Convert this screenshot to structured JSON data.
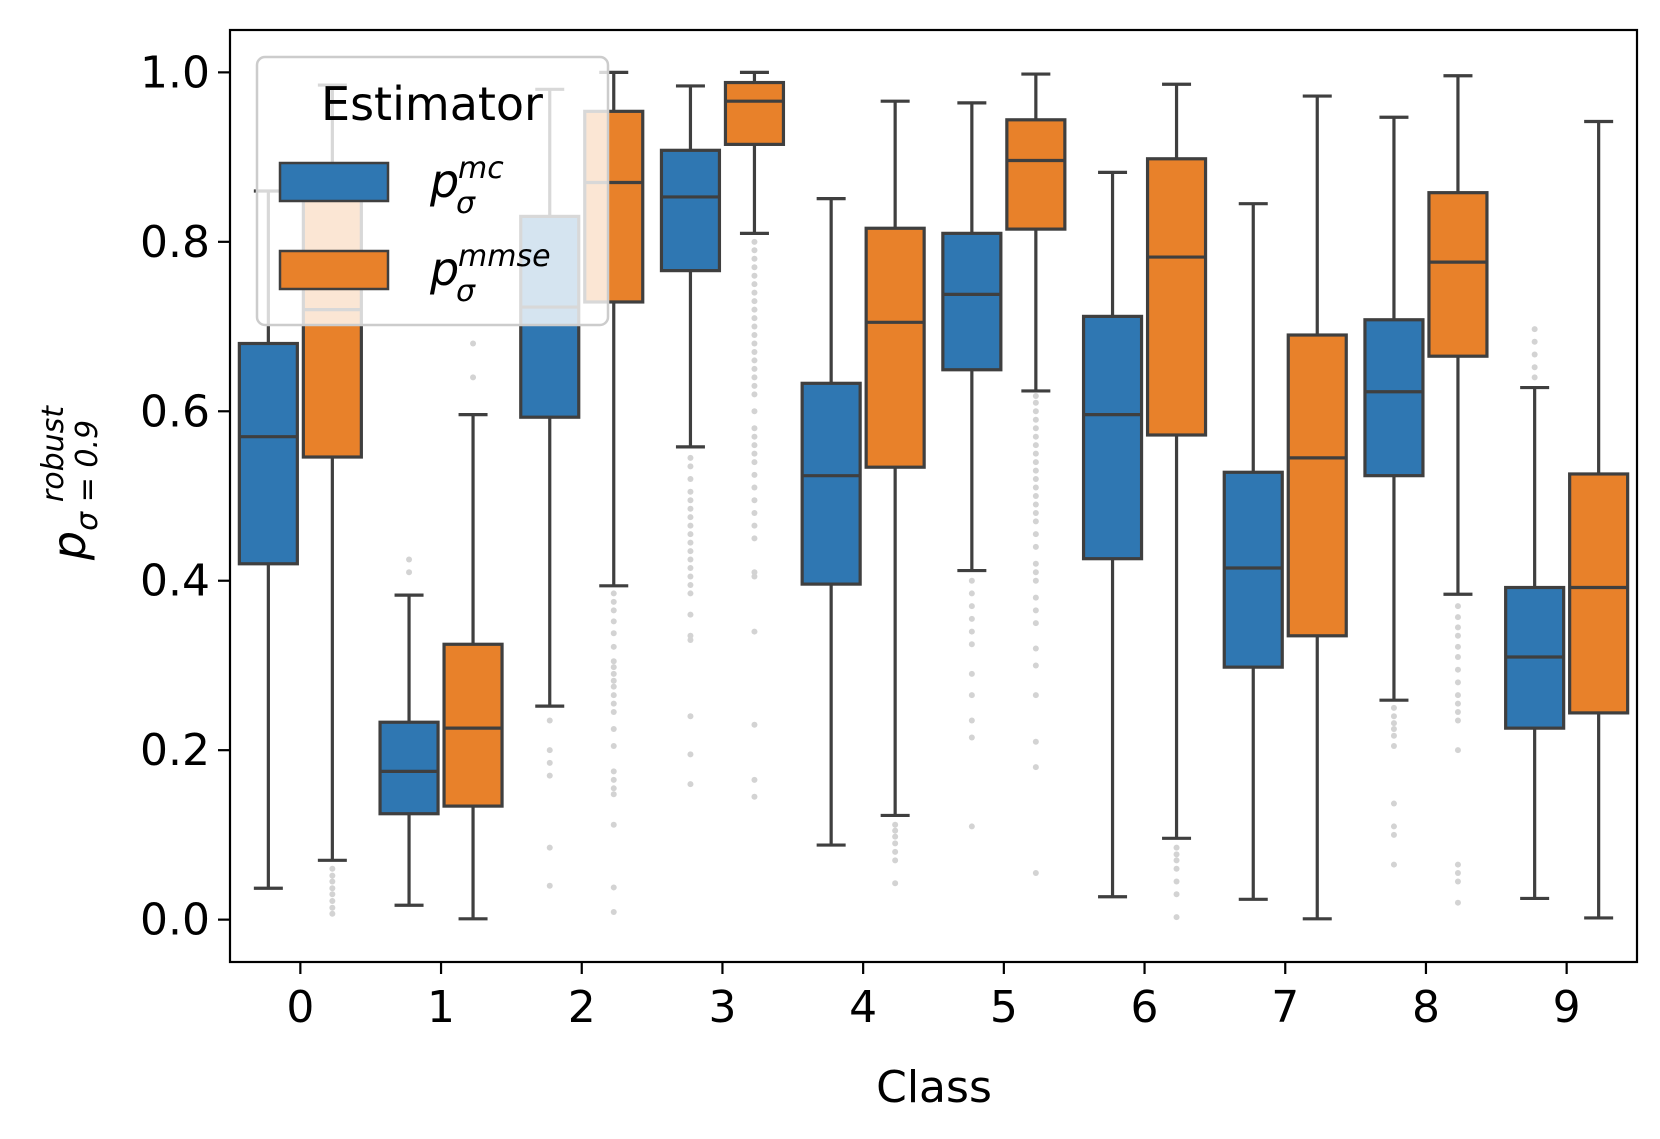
{
  "chart_data": {
    "type": "boxplot",
    "xlabel": "Class",
    "ylabel": {
      "base": "p",
      "sup": "robust",
      "sub": "σ = 0.9"
    },
    "categories": [
      "0",
      "1",
      "2",
      "3",
      "4",
      "5",
      "6",
      "7",
      "8",
      "9"
    ],
    "ylim": [
      -0.05,
      1.05
    ],
    "yticks": [
      "0.0",
      "0.2",
      "0.4",
      "0.6",
      "0.8",
      "1.0"
    ],
    "legend": {
      "title": "Estimator",
      "position": "top-left",
      "entries": [
        {
          "base": "p",
          "sub": "σ",
          "sup": "mc"
        },
        {
          "base": "p",
          "sub": "σ",
          "sup": "mmse"
        }
      ]
    },
    "colors": {
      "mc": "#2f77b2",
      "mmse": "#e8812a",
      "edge": "#3f3f3f",
      "flier": "#d3d3d3"
    },
    "series": [
      {
        "name": "mc",
        "boxes": [
          {
            "whislo": 0.037,
            "q1": 0.42,
            "med": 0.57,
            "q3": 0.68,
            "whishi": 0.86,
            "fliers": []
          },
          {
            "whislo": 0.017,
            "q1": 0.125,
            "med": 0.175,
            "q3": 0.233,
            "whishi": 0.383,
            "fliers": [
              0.41,
              0.425
            ]
          },
          {
            "whislo": 0.252,
            "q1": 0.593,
            "med": 0.723,
            "q3": 0.83,
            "whishi": 0.98,
            "fliers": [
              0.235,
              0.2,
              0.185,
              0.17,
              0.085,
              0.04
            ]
          },
          {
            "whislo": 0.558,
            "q1": 0.766,
            "med": 0.853,
            "q3": 0.908,
            "whishi": 0.984,
            "fliers": [
              0.545,
              0.535,
              0.52,
              0.505,
              0.495,
              0.485,
              0.475,
              0.465,
              0.455,
              0.445,
              0.435,
              0.425,
              0.415,
              0.405,
              0.395,
              0.385,
              0.36,
              0.335,
              0.33,
              0.24,
              0.195,
              0.16
            ]
          },
          {
            "whislo": 0.088,
            "q1": 0.396,
            "med": 0.524,
            "q3": 0.633,
            "whishi": 0.851,
            "fliers": []
          },
          {
            "whislo": 0.412,
            "q1": 0.649,
            "med": 0.738,
            "q3": 0.81,
            "whishi": 0.964,
            "fliers": [
              0.4,
              0.385,
              0.37,
              0.355,
              0.34,
              0.325,
              0.29,
              0.265,
              0.235,
              0.215,
              0.11
            ]
          },
          {
            "whislo": 0.027,
            "q1": 0.426,
            "med": 0.596,
            "q3": 0.712,
            "whishi": 0.882,
            "fliers": []
          },
          {
            "whislo": 0.024,
            "q1": 0.298,
            "med": 0.415,
            "q3": 0.528,
            "whishi": 0.845,
            "fliers": []
          },
          {
            "whislo": 0.259,
            "q1": 0.524,
            "med": 0.623,
            "q3": 0.708,
            "whishi": 0.947,
            "fliers": [
              0.25,
              0.24,
              0.232,
              0.225,
              0.217,
              0.205,
              0.137,
              0.11,
              0.1,
              0.065
            ]
          },
          {
            "whislo": 0.025,
            "q1": 0.226,
            "med": 0.31,
            "q3": 0.392,
            "whishi": 0.628,
            "fliers": [
              0.697,
              0.682,
              0.667,
              0.652,
              0.64
            ]
          }
        ]
      },
      {
        "name": "mmse",
        "boxes": [
          {
            "whislo": 0.07,
            "q1": 0.546,
            "med": 0.72,
            "q3": 0.86,
            "whishi": 0.985,
            "fliers": [
              0.06,
              0.052,
              0.045,
              0.037,
              0.03,
              0.022,
              0.014,
              0.007
            ]
          },
          {
            "whislo": 0.001,
            "q1": 0.134,
            "med": 0.226,
            "q3": 0.325,
            "whishi": 0.596,
            "fliers": [
              0.68,
              0.64
            ]
          },
          {
            "whislo": 0.394,
            "q1": 0.729,
            "med": 0.87,
            "q3": 0.954,
            "whishi": 1.0,
            "fliers": [
              0.385,
              0.375,
              0.365,
              0.352,
              0.338,
              0.322,
              0.305,
              0.298,
              0.29,
              0.282,
              0.275,
              0.265,
              0.255,
              0.245,
              0.225,
              0.205,
              0.175,
              0.165,
              0.155,
              0.148,
              0.112,
              0.038,
              0.009
            ]
          },
          {
            "whislo": 0.81,
            "q1": 0.915,
            "med": 0.966,
            "q3": 0.988,
            "whishi": 1.0,
            "fliers": [
              0.8,
              0.79,
              0.78,
              0.77,
              0.76,
              0.75,
              0.74,
              0.73,
              0.72,
              0.71,
              0.7,
              0.69,
              0.68,
              0.67,
              0.66,
              0.65,
              0.64,
              0.63,
              0.62,
              0.6,
              0.58,
              0.57,
              0.56,
              0.55,
              0.54,
              0.525,
              0.51,
              0.495,
              0.48,
              0.465,
              0.45,
              0.41,
              0.405,
              0.34,
              0.23,
              0.165,
              0.145
            ]
          },
          {
            "whislo": 0.123,
            "q1": 0.534,
            "med": 0.705,
            "q3": 0.816,
            "whishi": 0.966,
            "fliers": [
              0.112,
              0.105,
              0.098,
              0.09,
              0.08,
              0.07,
              0.043
            ]
          },
          {
            "whislo": 0.624,
            "q1": 0.815,
            "med": 0.896,
            "q3": 0.944,
            "whishi": 0.998,
            "fliers": [
              0.618,
              0.61,
              0.6,
              0.59,
              0.58,
              0.57,
              0.56,
              0.55,
              0.54,
              0.53,
              0.52,
              0.51,
              0.5,
              0.49,
              0.48,
              0.47,
              0.455,
              0.44,
              0.42,
              0.41,
              0.4,
              0.38,
              0.365,
              0.35,
              0.32,
              0.3,
              0.265,
              0.21,
              0.18,
              0.055
            ]
          },
          {
            "whislo": 0.096,
            "q1": 0.572,
            "med": 0.782,
            "q3": 0.898,
            "whishi": 0.986,
            "fliers": [
              0.085,
              0.077,
              0.07,
              0.06,
              0.045,
              0.03,
              0.003
            ]
          },
          {
            "whislo": 0.001,
            "q1": 0.335,
            "med": 0.545,
            "q3": 0.69,
            "whishi": 0.972,
            "fliers": []
          },
          {
            "whislo": 0.384,
            "q1": 0.665,
            "med": 0.776,
            "q3": 0.858,
            "whishi": 0.996,
            "fliers": [
              0.37,
              0.357,
              0.345,
              0.335,
              0.322,
              0.31,
              0.295,
              0.28,
              0.265,
              0.255,
              0.245,
              0.235,
              0.2,
              0.065,
              0.055,
              0.045,
              0.02
            ]
          },
          {
            "whislo": 0.002,
            "q1": 0.244,
            "med": 0.392,
            "q3": 0.526,
            "whishi": 0.942,
            "fliers": []
          }
        ]
      }
    ]
  }
}
